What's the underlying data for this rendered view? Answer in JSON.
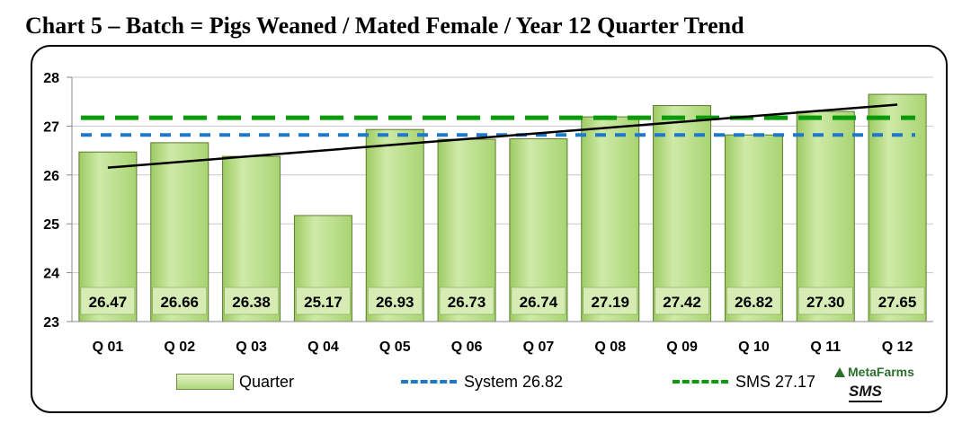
{
  "title": "Chart 5 – Batch = Pigs Weaned / Mated Female / Year 12 Quarter Trend",
  "logo": {
    "top_text": "MetaFarms",
    "bottom_text": "SMS",
    "color": "#2d6e2d"
  },
  "chart_data": {
    "type": "bar",
    "categories": [
      "Q 01",
      "Q 02",
      "Q 03",
      "Q 04",
      "Q 05",
      "Q 06",
      "Q 07",
      "Q 08",
      "Q 09",
      "Q 10",
      "Q 11",
      "Q 12"
    ],
    "series": [
      {
        "name": "Quarter",
        "values": [
          26.47,
          26.66,
          26.38,
          25.17,
          26.93,
          26.73,
          26.74,
          27.19,
          27.42,
          26.82,
          27.3,
          27.65
        ],
        "color": "#b8dc8a"
      }
    ],
    "data_labels": [
      "26.47",
      "26.66",
      "26.38",
      "25.17",
      "26.93",
      "26.73",
      "26.74",
      "27.19",
      "27.42",
      "26.82",
      "27.30",
      "27.65"
    ],
    "reference_lines": [
      {
        "name": "System 26.82",
        "value": 26.82,
        "color": "#1f78c8",
        "style": "dashed"
      },
      {
        "name": "SMS 27.17",
        "value": 27.17,
        "color": "#0a9a0a",
        "style": "dashed"
      }
    ],
    "trendline": {
      "start": 26.15,
      "end": 27.44,
      "color": "#000000"
    },
    "ylim": [
      23,
      28
    ],
    "yticks": [
      "23",
      "24",
      "25",
      "26",
      "27",
      "28"
    ],
    "grid": true,
    "legend": "bottom",
    "legend_entries": [
      "Quarter",
      "System 26.82",
      "SMS 27.17"
    ]
  }
}
